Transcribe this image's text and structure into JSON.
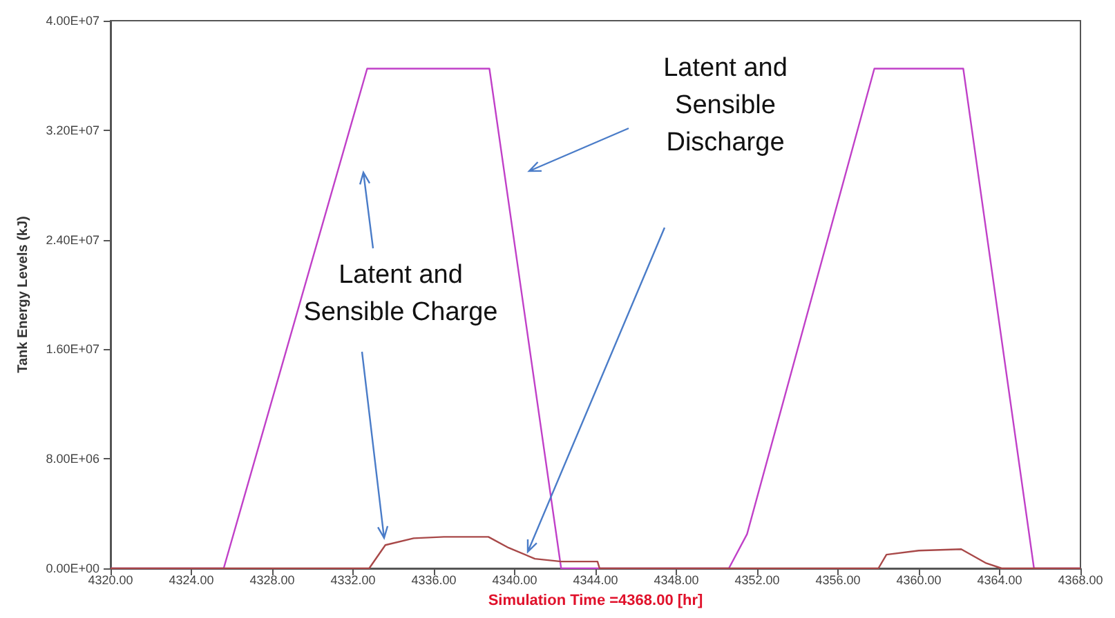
{
  "chart_data": {
    "type": "line",
    "xlabel": "Simulation Time =4368.00 [hr]",
    "ylabel": "Tank Energy Levels (kJ)",
    "xlim": [
      4320,
      4368
    ],
    "xticks": [
      {
        "value": 4320,
        "label": "4320.00"
      },
      {
        "value": 4324,
        "label": "4324.00"
      },
      {
        "value": 4328,
        "label": "4328.00"
      },
      {
        "value": 4332,
        "label": "4332.00"
      },
      {
        "value": 4336,
        "label": "4336.00"
      },
      {
        "value": 4340,
        "label": "4340.00"
      },
      {
        "value": 4344,
        "label": "4344.00"
      },
      {
        "value": 4348,
        "label": "4348.00"
      },
      {
        "value": 4352,
        "label": "4352.00"
      },
      {
        "value": 4356,
        "label": "4356.00"
      },
      {
        "value": 4360,
        "label": "4360.00"
      },
      {
        "value": 4364,
        "label": "4364.00"
      },
      {
        "value": 4368,
        "label": "4368.00"
      }
    ],
    "ylim": [
      0,
      40000000
    ],
    "yticks": [
      {
        "value": 0,
        "label": "0.00E+00"
      },
      {
        "value": 8000000,
        "label": "8.00E+06"
      },
      {
        "value": 16000000,
        "label": "1.60E+07"
      },
      {
        "value": 24000000,
        "label": "2.40E+07"
      },
      {
        "value": 32000000,
        "label": "3.20E+07"
      },
      {
        "value": 40000000,
        "label": "4.00E+07"
      }
    ],
    "grid": false,
    "marker": "none",
    "line_style": "solid",
    "series": [
      {
        "color": "#c040c8",
        "x": [
          4320,
          4325.6,
          4332.7,
          4338.75,
          4342.3,
          4350.6,
          4351.5,
          4357.8,
          4362.2,
          4365.7,
          4368
        ],
        "values": [
          0,
          0,
          36500000,
          36500000,
          0,
          0,
          2500000,
          36500000,
          36500000,
          0,
          0
        ]
      },
      {
        "color": "#a84848",
        "x": [
          4320,
          4332.8,
          4333.6,
          4335,
          4336.5,
          4338.7,
          4339.7,
          4341,
          4342.3,
          4344.1,
          4344.2,
          4358,
          4358.4,
          4360,
          4362.1,
          4363.3,
          4364.1,
          4368
        ],
        "values": [
          0,
          0,
          1700000,
          2200000,
          2300000,
          2300000,
          1500000,
          700000,
          500000,
          500000,
          0,
          0,
          1000000,
          1300000,
          1400000,
          400000,
          0,
          0
        ]
      }
    ],
    "annotations": [
      "Latent and\nSensible Charge",
      "Latent and\nSensible\nDischarge"
    ]
  }
}
